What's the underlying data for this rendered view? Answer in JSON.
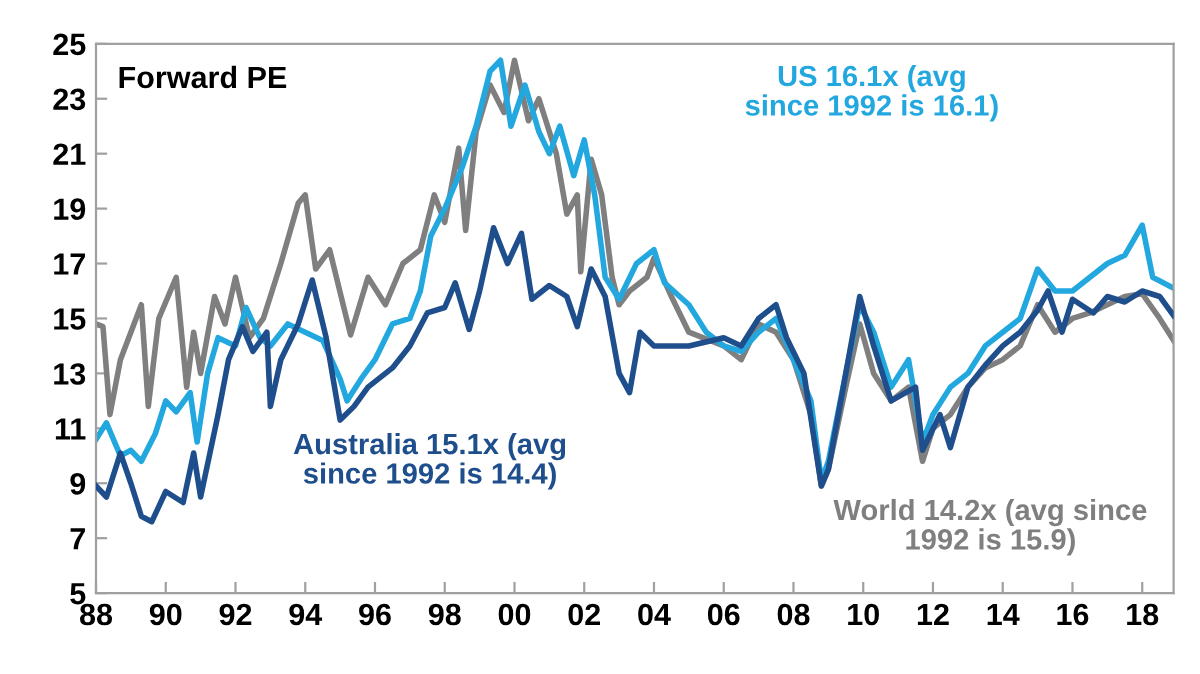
{
  "chart_data": {
    "type": "line",
    "title": "Forward PE",
    "xlim": [
      1988,
      2018.9
    ],
    "ylim": [
      5,
      25
    ],
    "xticks": [
      {
        "value": 1988,
        "label": "88"
      },
      {
        "value": 1990,
        "label": "90"
      },
      {
        "value": 1992,
        "label": "92"
      },
      {
        "value": 1994,
        "label": "94"
      },
      {
        "value": 1996,
        "label": "96"
      },
      {
        "value": 1998,
        "label": "98"
      },
      {
        "value": 2000,
        "label": "00"
      },
      {
        "value": 2002,
        "label": "02"
      },
      {
        "value": 2004,
        "label": "04"
      },
      {
        "value": 2006,
        "label": "06"
      },
      {
        "value": 2008,
        "label": "08"
      },
      {
        "value": 2010,
        "label": "10"
      },
      {
        "value": 2012,
        "label": "12"
      },
      {
        "value": 2014,
        "label": "14"
      },
      {
        "value": 2016,
        "label": "16"
      },
      {
        "value": 2018,
        "label": "18"
      }
    ],
    "yticks": [
      5,
      7,
      9,
      11,
      13,
      15,
      17,
      19,
      21,
      23,
      25
    ],
    "grid": false,
    "legend": false,
    "marker": "none",
    "line_style": "solid",
    "series": [
      {
        "name": "World 14.2x (avg since\n1992 is 15.9)",
        "color": "#7f7f7f",
        "x": [
          1988.0,
          1988.2,
          1988.4,
          1988.7,
          1989.0,
          1989.3,
          1989.5,
          1989.8,
          1990.3,
          1990.6,
          1990.8,
          1991.0,
          1991.4,
          1991.7,
          1992.0,
          1992.4,
          1992.8,
          1993.3,
          1993.8,
          1994.0,
          1994.3,
          1994.7,
          1995.3,
          1995.8,
          1996.3,
          1996.8,
          1997.3,
          1997.7,
          1998.0,
          1998.4,
          1998.6,
          1998.9,
          1999.3,
          1999.7,
          2000.0,
          2000.4,
          2000.7,
          2001.2,
          2001.5,
          2001.8,
          2001.9,
          2002.2,
          2002.5,
          2002.8,
          2003.0,
          2003.3,
          2003.8,
          2004.0,
          2004.5,
          2005.0,
          2006.0,
          2006.5,
          2007.0,
          2007.5,
          2008.0,
          2008.5,
          2008.8,
          2009.0,
          2009.5,
          2009.9,
          2010.3,
          2010.8,
          2011.3,
          2011.7,
          2012.0,
          2012.5,
          2013.0,
          2013.5,
          2014.0,
          2014.5,
          2015.0,
          2015.5,
          2016.0,
          2016.5,
          2017.0,
          2017.5,
          2018.0,
          2018.5,
          2018.9
        ],
        "values": [
          14.8,
          14.7,
          11.5,
          13.5,
          14.5,
          15.5,
          11.8,
          15.0,
          16.5,
          12.5,
          14.5,
          13.0,
          15.8,
          14.8,
          16.5,
          14.3,
          15.0,
          17.0,
          19.2,
          19.5,
          16.8,
          17.5,
          14.4,
          16.5,
          15.5,
          17.0,
          17.5,
          19.5,
          18.5,
          21.2,
          18.2,
          21.8,
          23.5,
          22.5,
          24.4,
          22.2,
          23.0,
          21.0,
          18.8,
          19.5,
          16.7,
          20.8,
          19.5,
          16.5,
          15.5,
          16.0,
          16.5,
          17.2,
          15.8,
          14.5,
          14.0,
          13.5,
          14.8,
          14.5,
          13.5,
          11.5,
          8.9,
          9.5,
          12.5,
          14.8,
          13.0,
          12.0,
          12.5,
          9.8,
          11.0,
          11.5,
          12.5,
          13.2,
          13.5,
          14.0,
          15.5,
          14.5,
          15.0,
          15.2,
          15.5,
          15.8,
          15.9,
          15.0,
          14.2
        ]
      },
      {
        "name": "US 16.1x (avg\nsince 1992 is 16.1)",
        "color": "#22a8df",
        "x": [
          1988.0,
          1988.3,
          1988.7,
          1989.0,
          1989.3,
          1989.7,
          1990.0,
          1990.3,
          1990.7,
          1990.9,
          1991.2,
          1991.5,
          1992.0,
          1992.3,
          1992.7,
          1993.0,
          1993.5,
          1994.0,
          1994.5,
          1995.0,
          1995.2,
          1995.6,
          1996.0,
          1996.5,
          1997.0,
          1997.3,
          1997.6,
          1998.0,
          1998.5,
          1998.9,
          1999.3,
          1999.6,
          1999.9,
          2000.3,
          2000.7,
          2001.0,
          2001.3,
          2001.7,
          2002.0,
          2002.3,
          2002.6,
          2003.0,
          2003.5,
          2004.0,
          2004.3,
          2005.0,
          2005.5,
          2006.0,
          2006.5,
          2007.0,
          2007.5,
          2008.0,
          2008.5,
          2008.8,
          2009.0,
          2009.5,
          2009.9,
          2010.3,
          2010.8,
          2011.3,
          2011.7,
          2012.0,
          2012.5,
          2013.0,
          2013.5,
          2014.0,
          2014.5,
          2015.0,
          2015.5,
          2016.0,
          2016.5,
          2017.0,
          2017.5,
          2018.0,
          2018.3,
          2018.9
        ],
        "values": [
          10.6,
          11.2,
          10.0,
          10.2,
          9.8,
          10.8,
          12.0,
          11.6,
          12.3,
          10.5,
          13.0,
          14.3,
          14.0,
          15.4,
          14.3,
          14.0,
          14.8,
          14.5,
          14.2,
          12.8,
          12.0,
          12.8,
          13.5,
          14.8,
          15.0,
          16.0,
          18.0,
          19.0,
          20.5,
          22.0,
          24.0,
          24.4,
          22.0,
          23.5,
          21.8,
          21.0,
          22.0,
          20.2,
          21.5,
          19.5,
          16.5,
          15.7,
          17.0,
          17.5,
          16.3,
          15.5,
          14.5,
          14.0,
          13.8,
          14.5,
          15.0,
          13.5,
          12.0,
          9.1,
          9.8,
          13.0,
          15.5,
          14.5,
          12.5,
          13.5,
          10.5,
          11.5,
          12.5,
          13.0,
          14.0,
          14.5,
          15.0,
          16.8,
          16.0,
          16.0,
          16.5,
          17.0,
          17.3,
          18.4,
          16.5,
          16.1
        ]
      },
      {
        "name": "Australia 15.1x (avg\nsince 1992 is 14.4)",
        "color": "#1f4e8c",
        "x": [
          1988.0,
          1988.3,
          1988.7,
          1989.0,
          1989.3,
          1989.6,
          1990.0,
          1990.5,
          1990.8,
          1991.0,
          1991.5,
          1991.8,
          1992.2,
          1992.5,
          1992.9,
          1993.0,
          1993.3,
          1993.8,
          1994.2,
          1994.6,
          1995.0,
          1995.4,
          1995.8,
          1996.5,
          1997.0,
          1997.5,
          1998.0,
          1998.3,
          1998.7,
          1999.0,
          1999.4,
          1999.8,
          2000.2,
          2000.5,
          2001.0,
          2001.5,
          2001.8,
          2002.2,
          2002.6,
          2003.0,
          2003.3,
          2003.6,
          2004.0,
          2005.0,
          2006.0,
          2006.5,
          2007.0,
          2007.5,
          2007.8,
          2008.3,
          2008.8,
          2009.0,
          2009.5,
          2009.9,
          2010.3,
          2010.8,
          2011.5,
          2011.7,
          2012.2,
          2012.5,
          2013.0,
          2013.5,
          2014.0,
          2014.5,
          2015.0,
          2015.3,
          2015.7,
          2016.0,
          2016.6,
          2017.0,
          2017.5,
          2018.0,
          2018.5,
          2018.9
        ],
        "values": [
          8.9,
          8.5,
          10.1,
          9.0,
          7.8,
          7.6,
          8.7,
          8.3,
          10.1,
          8.5,
          11.5,
          13.5,
          14.7,
          13.8,
          14.5,
          11.8,
          13.5,
          14.8,
          16.4,
          14.3,
          11.3,
          11.8,
          12.5,
          13.2,
          14.0,
          15.2,
          15.4,
          16.3,
          14.6,
          16.0,
          18.3,
          17.0,
          18.1,
          15.7,
          16.2,
          15.8,
          14.7,
          16.8,
          15.8,
          13.0,
          12.3,
          14.5,
          14.0,
          14.0,
          14.3,
          14.0,
          15.0,
          15.5,
          14.3,
          13.0,
          8.9,
          9.5,
          13.0,
          15.8,
          14.0,
          12.0,
          12.5,
          10.2,
          11.5,
          10.3,
          12.5,
          13.3,
          14.0,
          14.5,
          15.3,
          16.0,
          14.5,
          15.7,
          15.2,
          15.8,
          15.6,
          16.0,
          15.8,
          15.1
        ]
      }
    ]
  }
}
